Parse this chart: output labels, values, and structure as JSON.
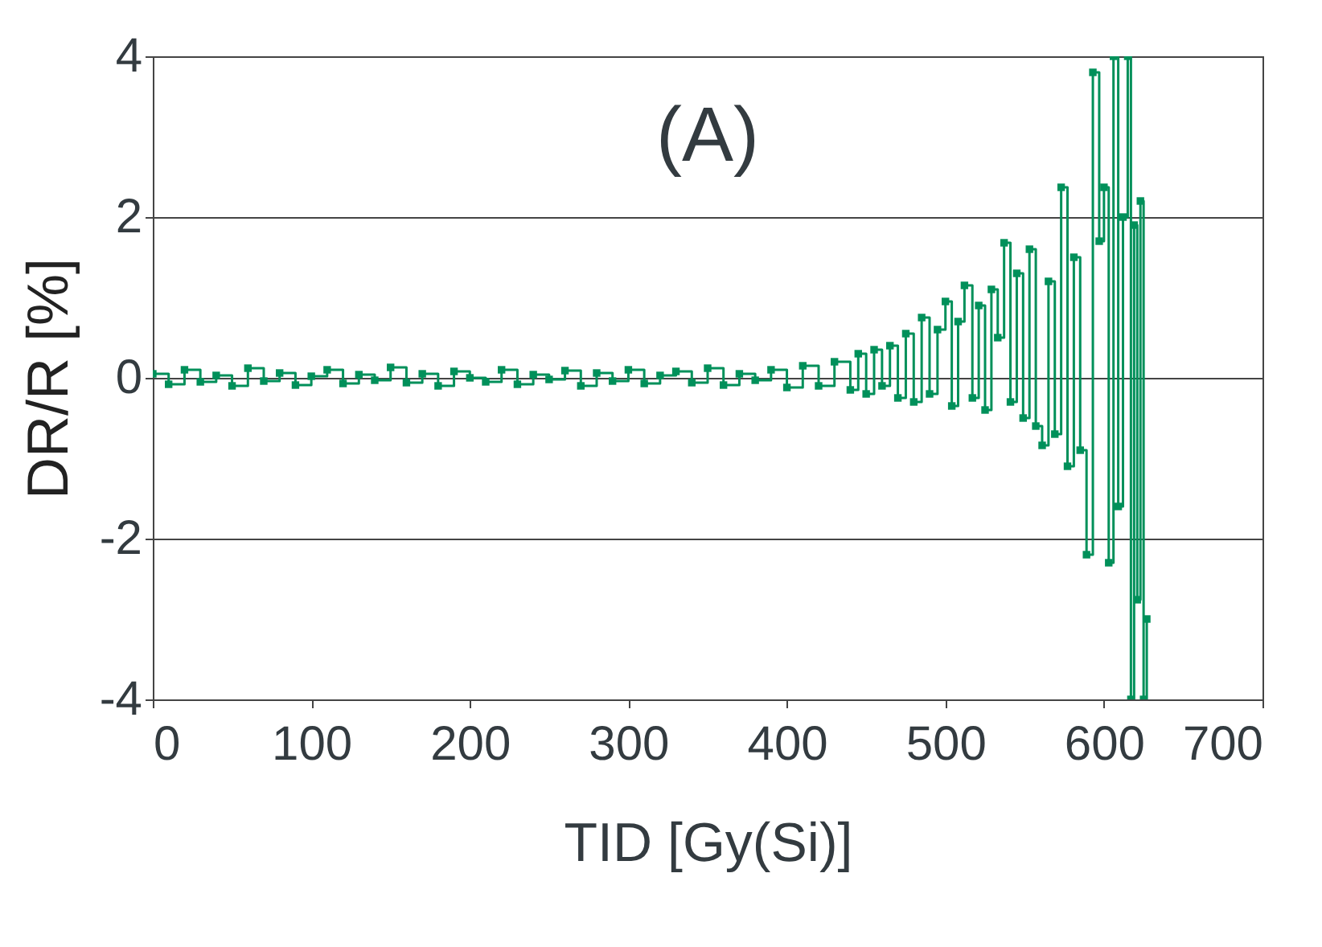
{
  "chart_data": {
    "type": "step",
    "title": "(A)",
    "xlabel": "TID [Gy(Si)]",
    "ylabel": "DR/R [%]",
    "xlim": [
      0,
      700
    ],
    "xticks": [
      0,
      100,
      200,
      300,
      400,
      500,
      600,
      700
    ],
    "ylim": [
      -4,
      4
    ],
    "yticks": [
      -4,
      -2,
      0,
      2,
      4
    ],
    "grid": "y",
    "marker": "square",
    "series": [
      {
        "color": "#00905a",
        "x": [
          0,
          10,
          20,
          30,
          40,
          50,
          60,
          70,
          80,
          90,
          100,
          110,
          120,
          130,
          140,
          150,
          160,
          170,
          180,
          190,
          200,
          210,
          220,
          230,
          240,
          250,
          260,
          270,
          280,
          290,
          300,
          310,
          320,
          330,
          340,
          350,
          360,
          370,
          380,
          390,
          400,
          410,
          420,
          430,
          440,
          445,
          450,
          455,
          460,
          465,
          470,
          475,
          480,
          485,
          490,
          495,
          500,
          504,
          508,
          512,
          517,
          521,
          525,
          529,
          533,
          537,
          541,
          545,
          549,
          553,
          557,
          561,
          565,
          569,
          573,
          577,
          581,
          585,
          589,
          593,
          597,
          600,
          603,
          606,
          609,
          612,
          615,
          617,
          619,
          621,
          623,
          625,
          627
        ],
        "values": [
          0.05,
          -0.08,
          0.1,
          -0.05,
          0.03,
          -0.1,
          0.12,
          -0.04,
          0.06,
          -0.09,
          0.02,
          0.1,
          -0.07,
          0.04,
          -0.03,
          0.13,
          -0.06,
          0.05,
          -0.1,
          0.08,
          0.0,
          -0.05,
          0.1,
          -0.08,
          0.04,
          -0.02,
          0.09,
          -0.1,
          0.06,
          -0.04,
          0.1,
          -0.07,
          0.03,
          0.08,
          -0.06,
          0.12,
          -0.09,
          0.05,
          -0.03,
          0.1,
          -0.12,
          0.15,
          -0.1,
          0.2,
          -0.15,
          0.3,
          -0.2,
          0.35,
          -0.1,
          0.4,
          -0.25,
          0.55,
          -0.3,
          0.75,
          -0.2,
          0.6,
          0.95,
          -0.35,
          0.7,
          1.15,
          -0.25,
          0.9,
          -0.4,
          1.1,
          0.5,
          1.68,
          -0.3,
          1.3,
          -0.5,
          1.6,
          -0.6,
          -0.84,
          1.2,
          -0.7,
          2.37,
          -1.1,
          1.5,
          -0.9,
          -2.2,
          3.8,
          1.7,
          2.37,
          -2.3,
          4.0,
          -1.6,
          2.0,
          4.0,
          -4.0,
          1.9,
          -2.76,
          2.2,
          -4.0,
          -3.0
        ]
      }
    ]
  }
}
